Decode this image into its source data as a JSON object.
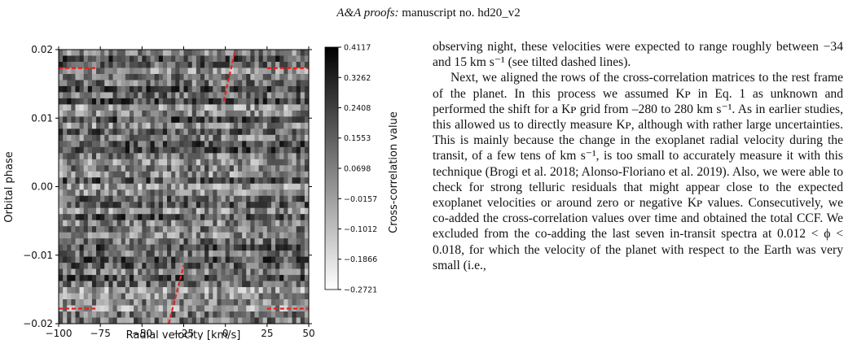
{
  "header": {
    "journal": "A&A proofs:",
    "manuscript": "manuscript no. hd20_v2"
  },
  "chart_data": {
    "type": "heatmap",
    "xlabel": "Radial velocity [km/s]",
    "ylabel": "Orbital phase",
    "colorbar_label": "Cross-correlation value",
    "xlim": [
      -100,
      50
    ],
    "ylim": [
      -0.02,
      0.02
    ],
    "x_ticks": [
      "−100",
      "−75",
      "−50",
      "−25",
      "0",
      "25",
      "50"
    ],
    "x_tick_values": [
      -100,
      -75,
      -50,
      -25,
      0,
      25,
      50
    ],
    "y_ticks": [
      "0.02",
      "0.01",
      "0.00",
      "−0.01",
      "−0.02"
    ],
    "y_tick_values": [
      0.02,
      0.01,
      0.0,
      -0.01,
      -0.02
    ],
    "colorbar_ticks": [
      "0.4117",
      "0.3262",
      "0.2408",
      "0.1553",
      "0.0698",
      "−0.0157",
      "−0.1012",
      "−0.1866",
      "−0.2721"
    ],
    "colorbar_values": [
      0.4117,
      0.3262,
      0.2408,
      0.1553,
      0.0698,
      -0.0157,
      -0.1012,
      -0.1866,
      -0.2721
    ],
    "colorbar_range": [
      -0.2721,
      0.4117
    ],
    "colormap": "gray",
    "overlay_color": "#e8201c",
    "overlays": [
      {
        "style": "dashed",
        "x": [
          -100,
          -78
        ],
        "y": [
          0.0173,
          0.0173
        ]
      },
      {
        "style": "dashed",
        "x": [
          25,
          50
        ],
        "y": [
          0.0173,
          0.0173
        ]
      },
      {
        "style": "dashed",
        "x": [
          -100,
          -78
        ],
        "y": [
          -0.0178,
          -0.0178
        ]
      },
      {
        "style": "dashed",
        "x": [
          25,
          50
        ],
        "y": [
          -0.0178,
          -0.0178
        ]
      },
      {
        "style": "dashed",
        "x": [
          -1,
          6
        ],
        "y": [
          0.0125,
          0.02
        ]
      },
      {
        "style": "dashed",
        "x": [
          -34,
          -25
        ],
        "y": [
          -0.02,
          -0.0115
        ]
      }
    ],
    "grid": false
  },
  "text": {
    "p1": "observing night, these velocities were expected to range roughly between −34 and 15 km s⁻¹ (see tilted dashed lines).",
    "p2": "Next, we aligned the rows of the cross-correlation matrices to the rest frame of the planet. In this process we assumed Kᴘ in Eq. 1 as unknown and performed the shift for a Kᴘ grid from –280 to 280 km s⁻¹. As in earlier studies, this allowed us to directly measure Kᴘ, although with rather large uncertainties. This is mainly because the change in the exoplanet radial velocity during the transit, of a few tens of km s⁻¹, is too small to accurately measure it with this technique (Brogi et al. 2018; Alonso-Floriano et al. 2019). Also, we were able to check for strong telluric residuals that might appear close to the expected exoplanet velocities or around zero or negative Kᴘ values. Consecutively, we co-added the cross-correlation values over time and obtained the total CCF. We excluded from the co-adding the last seven in-transit spectra at 0.012 < ϕ < 0.018, for which the velocity of the planet with respect to the Earth was very small (i.e.,"
  }
}
